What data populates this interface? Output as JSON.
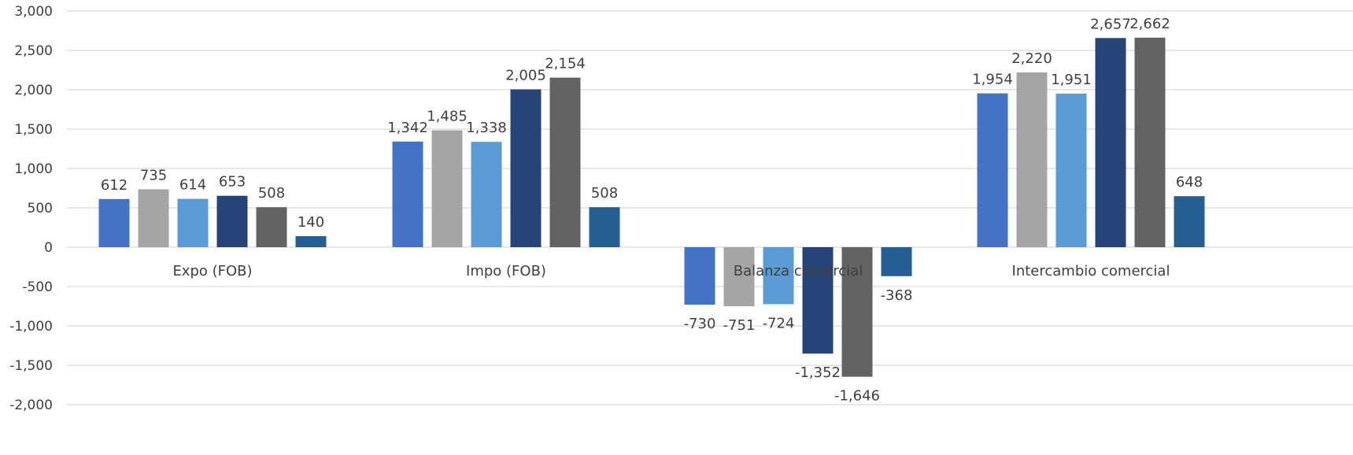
{
  "chart_data": {
    "type": "bar",
    "categories": [
      "Expo (FOB)",
      "Impo (FOB)",
      "Balanza comercial",
      "Intercambio comercial"
    ],
    "series": [
      {
        "color": "#4472C4",
        "values": [
          612,
          1342,
          -730,
          1954
        ]
      },
      {
        "color": "#A5A5A5",
        "values": [
          735,
          1485,
          -751,
          2220
        ]
      },
      {
        "color": "#5B9BD5",
        "values": [
          614,
          1338,
          -724,
          1951
        ]
      },
      {
        "color": "#264478",
        "values": [
          653,
          2005,
          -1352,
          2657
        ]
      },
      {
        "color": "#636363",
        "values": [
          508,
          2154,
          -1646,
          2662
        ]
      },
      {
        "color": "#255E91",
        "values": [
          140,
          508,
          -368,
          648
        ]
      }
    ],
    "data_labels": [
      [
        "612",
        "1,342",
        "-730",
        "1,954"
      ],
      [
        "735",
        "1,485",
        "-751",
        "2,220"
      ],
      [
        "614",
        "1,338",
        "-724",
        "1,951"
      ],
      [
        "653",
        "2,005",
        "-1,352",
        "2,657"
      ],
      [
        "508",
        "2,154",
        "-1,646",
        "2,662"
      ],
      [
        "140",
        "508",
        "-368",
        "648"
      ]
    ],
    "yticks": [
      3000,
      2500,
      2000,
      1500,
      1000,
      500,
      0,
      -500,
      -1000,
      -1500,
      -2000
    ],
    "ytick_labels": [
      "3,000",
      "2,500",
      "2,000",
      "1,500",
      "1,000",
      "500",
      "0",
      "-500",
      "-1,000",
      "-1,500",
      "-2,000"
    ],
    "ylim": [
      -2000,
      3000
    ],
    "grid": true,
    "legend": false,
    "title": "",
    "xlabel": "",
    "ylabel": ""
  }
}
